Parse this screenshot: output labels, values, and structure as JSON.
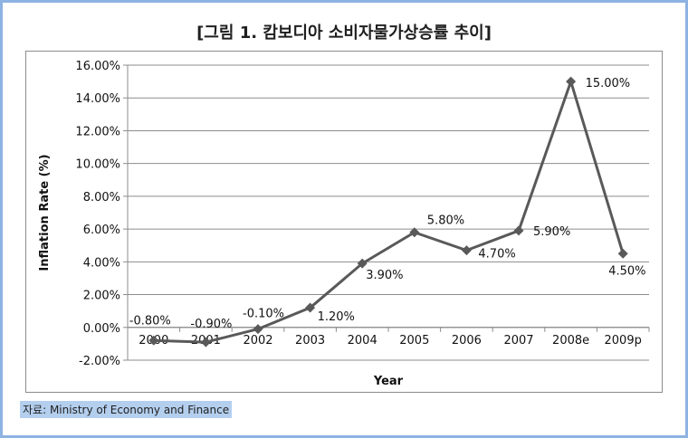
{
  "figure_title": "[그림 1. 캄보디아 소비자물가상승률 추이]",
  "source_text": "자료: Ministry of Economy and Finance",
  "chart_data": {
    "type": "line",
    "title": "",
    "xlabel": "Year",
    "ylabel": "Inflation Rate (%)",
    "categories": [
      "2000",
      "2001",
      "2002",
      "2003",
      "2004",
      "2005",
      "2006",
      "2007",
      "2008e",
      "2009p"
    ],
    "series": [
      {
        "values": [
          -0.8,
          -0.9,
          -0.1,
          1.2,
          3.9,
          5.8,
          4.7,
          5.9,
          15.0,
          4.5
        ],
        "labels": [
          "-0.80%",
          "-0.90%",
          "-0.10%",
          "1.20%",
          "3.90%",
          "5.80%",
          "4.70%",
          "5.90%",
          "15.00%",
          "4.50%"
        ],
        "color": "#595959"
      }
    ],
    "ylim": [
      -2,
      16
    ],
    "yticks": [
      -2,
      0,
      2,
      4,
      6,
      8,
      10,
      12,
      14,
      16
    ],
    "ytick_labels": [
      "-2.00%",
      "0.00%",
      "2.00%",
      "4.00%",
      "6.00%",
      "8.00%",
      "10.00%",
      "12.00%",
      "14.00%",
      "16.00%"
    ],
    "grid": true,
    "gridline_color": "#8c8c8c",
    "marker": "diamond"
  }
}
